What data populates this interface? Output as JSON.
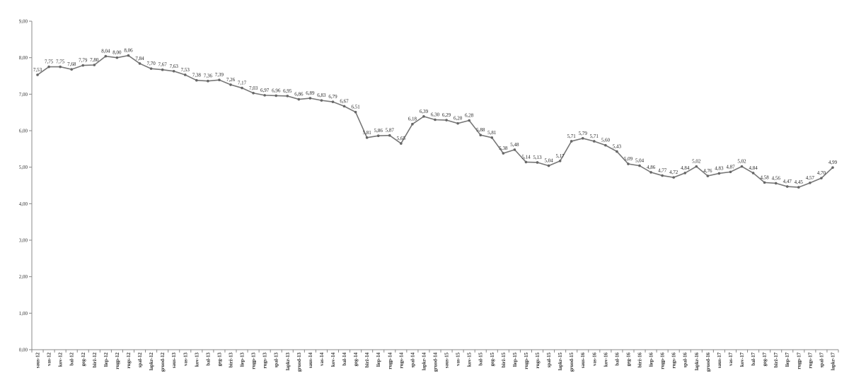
{
  "chart_data": {
    "type": "line",
    "ylim": [
      0,
      9
    ],
    "yticks": [
      "0,00",
      "1,00",
      "2,00",
      "3,00",
      "4,00",
      "5,00",
      "6,00",
      "7,00",
      "8,00",
      "9,00"
    ],
    "ytick_values": [
      0,
      1,
      2,
      3,
      4,
      5,
      6,
      7,
      8,
      9
    ],
    "grid": false,
    "categories": [
      "saus-12",
      "vas-12",
      "kov-12",
      "bal-12",
      "geg-12",
      "birž-12",
      "liep-12",
      "rugp-12",
      "rugs-12",
      "spal-12",
      "lapkr-12",
      "gruod-12",
      "saus-13",
      "vas-13",
      "kov-13",
      "bal-13",
      "geg-13",
      "birž-13",
      "liep-13",
      "rugp-13",
      "rugs-13",
      "spal-13",
      "lapkr-13",
      "gruod-13",
      "saus-14",
      "vas-14",
      "kov-14",
      "bal-14",
      "geg-14",
      "birž-14",
      "liep-14",
      "rugp-14",
      "rugs-14",
      "spal-14",
      "lapkr-14",
      "gruod-14",
      "saus-15",
      "vas-15",
      "kov-15",
      "bal-15",
      "geg-15",
      "birž-15",
      "liep-15",
      "rugp-15",
      "rugs-15",
      "spal-15",
      "lapkr-15",
      "gruod-15",
      "saus-16",
      "vas-16",
      "kov-16",
      "bal-16",
      "geg-16",
      "birž-16",
      "liep-16",
      "rugp-16",
      "rugs-16",
      "spal-16",
      "lapkr-16",
      "gruod-16",
      "saus-17",
      "vas-17",
      "kov-17",
      "bal-17",
      "geg-17",
      "birž-17",
      "liep-17",
      "rugp-17",
      "rugs-17",
      "spal-17",
      "lapkr-17"
    ],
    "values": [
      7.53,
      7.75,
      7.75,
      7.68,
      7.79,
      7.8,
      8.04,
      8.0,
      8.06,
      7.84,
      7.7,
      7.67,
      7.63,
      7.53,
      7.38,
      7.36,
      7.39,
      7.26,
      7.17,
      7.03,
      6.97,
      6.96,
      6.95,
      6.86,
      6.89,
      6.83,
      6.79,
      6.67,
      6.51,
      5.81,
      5.86,
      5.87,
      5.65,
      6.18,
      6.39,
      6.3,
      6.29,
      6.2,
      6.28,
      5.88,
      5.81,
      5.38,
      5.48,
      5.14,
      5.13,
      5.04,
      5.17,
      5.71,
      5.79,
      5.71,
      5.6,
      5.43,
      5.09,
      5.04,
      4.86,
      4.77,
      4.72,
      4.84,
      5.02,
      4.76,
      4.83,
      4.87,
      5.02,
      4.84,
      4.58,
      4.56,
      4.47,
      4.45,
      4.57,
      4.7,
      4.99
    ],
    "data_labels": [
      "7,53",
      "7,75",
      "7,75",
      "7,68",
      "7,79",
      "7,80",
      "8,04",
      "8,00",
      "8,06",
      "7,84",
      "7,70",
      "7,67",
      "7,63",
      "7,53",
      "7,38",
      "7,36",
      "7,39",
      "7,26",
      "7,17",
      "7,03",
      "6,97",
      "6,96",
      "6,95",
      "6,86",
      "6,89",
      "6,83",
      "6,79",
      "6,67",
      "6,51",
      "5,81",
      "5,86",
      "5,87",
      "5,65",
      "6,18",
      "6,39",
      "6,30",
      "6,29",
      "6,20",
      "6,28",
      "5,88",
      "5,81",
      "5,38",
      "5,48",
      "5,14",
      "5,13",
      "5,04",
      "5,17",
      "5,71",
      "5,79",
      "5,71",
      "5,60",
      "5,43",
      "5,09",
      "5,04",
      "4,86",
      "4,77",
      "4,72",
      "4,84",
      "5,02",
      "4,76",
      "4,83",
      "4,87",
      "5,02",
      "4,84",
      "4,58",
      "4,56",
      "4,47",
      "4,45",
      "4,57",
      "4,70",
      "4,99"
    ],
    "line_color": "#777777"
  }
}
